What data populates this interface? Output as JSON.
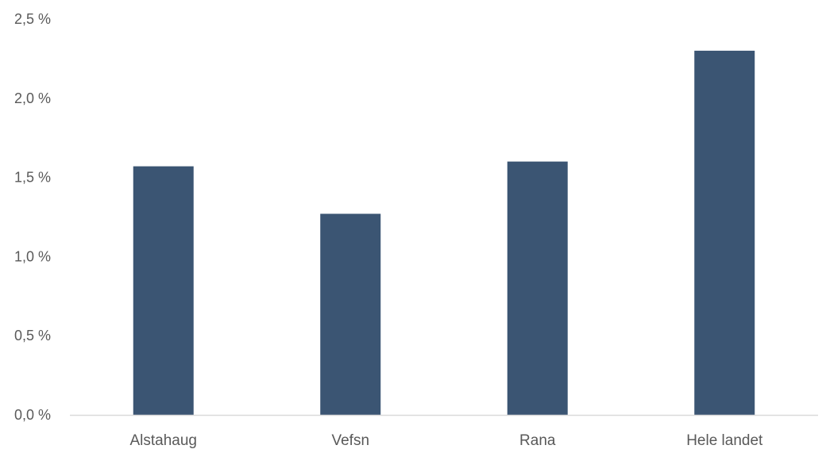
{
  "chart_data": {
    "type": "bar",
    "title": "",
    "xlabel": "",
    "ylabel": "",
    "categories": [
      "Alstahaug",
      "Vefsn",
      "Rana",
      "Hele landet"
    ],
    "values": [
      1.57,
      1.27,
      1.6,
      2.3
    ],
    "ylim": [
      0,
      2.5
    ],
    "yticks": [
      0,
      0.5,
      1.0,
      1.5,
      2.0,
      2.5
    ],
    "ytick_labels": [
      "0,0 %",
      "0,5 %",
      "1,0 %",
      "1,5 %",
      "2,0 %",
      "2,5 %"
    ],
    "grid": false,
    "legend": "none",
    "colors": {
      "bar": "#3b5573",
      "axis": "#d9d9d9",
      "text": "#595959"
    }
  }
}
